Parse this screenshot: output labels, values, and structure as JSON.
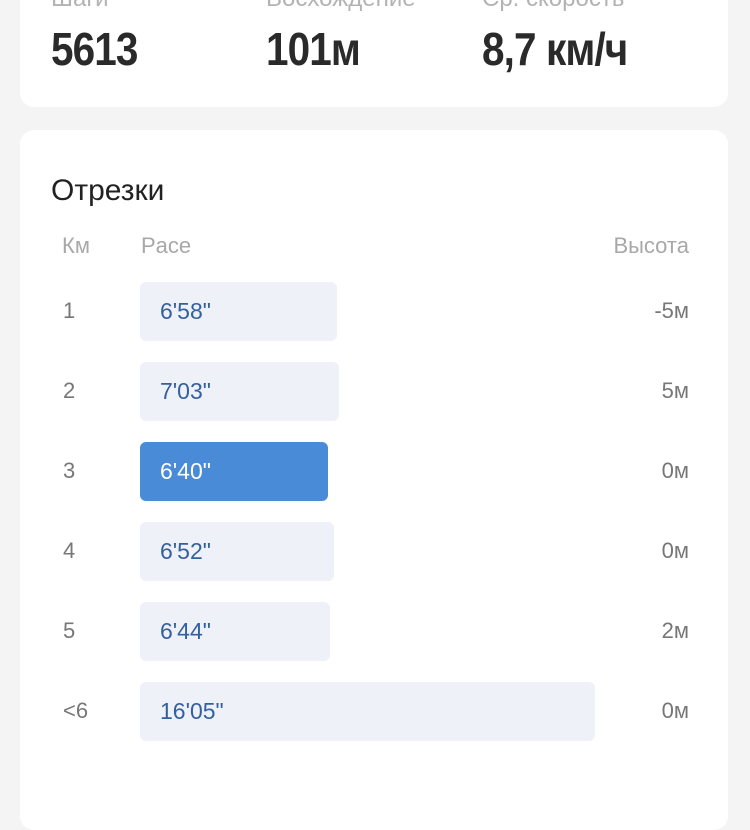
{
  "stats": [
    {
      "label": "Шаги",
      "value": "5613"
    },
    {
      "label": "Восхождение",
      "value": "101м"
    },
    {
      "label": "Ср. скорость",
      "value": "8,7 км/ч"
    }
  ],
  "splits": {
    "title": "Отрезки",
    "headers": {
      "km": "Км",
      "pace": "Pace",
      "elevation": "Высота"
    },
    "colors": {
      "bar": "#eef1f7",
      "best": "#4a8bd8"
    },
    "rows": [
      {
        "km": "1",
        "pace": "6'58\"",
        "pace_seconds": 418,
        "elevation": "-5м",
        "best": false
      },
      {
        "km": "2",
        "pace": "7'03\"",
        "pace_seconds": 423,
        "elevation": "5м",
        "best": false
      },
      {
        "km": "3",
        "pace": "6'40\"",
        "pace_seconds": 400,
        "elevation": "0м",
        "best": true
      },
      {
        "km": "4",
        "pace": "6'52\"",
        "pace_seconds": 412,
        "elevation": "0м",
        "best": false
      },
      {
        "km": "5",
        "pace": "6'44\"",
        "pace_seconds": 404,
        "elevation": "2м",
        "best": false
      },
      {
        "km": "<6",
        "pace": "16'05\"",
        "pace_seconds": 965,
        "elevation": "0м",
        "best": false
      }
    ]
  }
}
